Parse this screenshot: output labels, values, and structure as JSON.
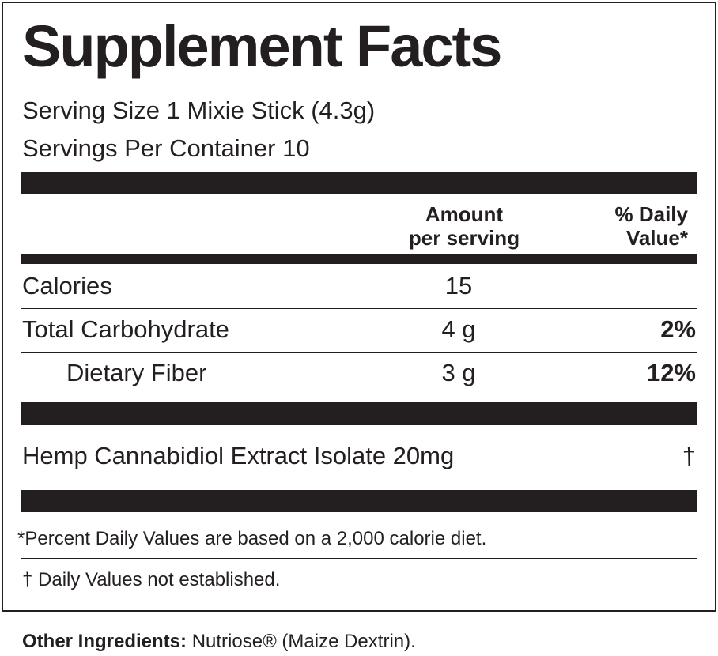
{
  "title": "Supplement Facts",
  "serving_size": "Serving Size 1 Mixie Stick (4.3g)",
  "servings_per_container": "Servings Per Container 10",
  "header": {
    "amount": [
      "Amount",
      "per serving"
    ],
    "daily_value": [
      "% Daily",
      "Value*"
    ]
  },
  "rows": [
    {
      "name": "Calories",
      "amount": "15"
    },
    {
      "name": "Total Carbohydrate",
      "amount": "4 g",
      "daily_value": "2%"
    },
    {
      "name": "Dietary Fiber",
      "amount": "3 g",
      "daily_value": "12%"
    }
  ],
  "extract": {
    "name": "Hemp Cannabidiol Extract Isolate 20mg",
    "daily_value": "†"
  },
  "footnotes": [
    "*Percent Daily Values are based on a 2,000 calorie diet.",
    "† Daily Values not established."
  ],
  "other_ingredients": {
    "label": "Other Ingredients:",
    "text": "Nutriose® (Maize Dextrin)."
  }
}
